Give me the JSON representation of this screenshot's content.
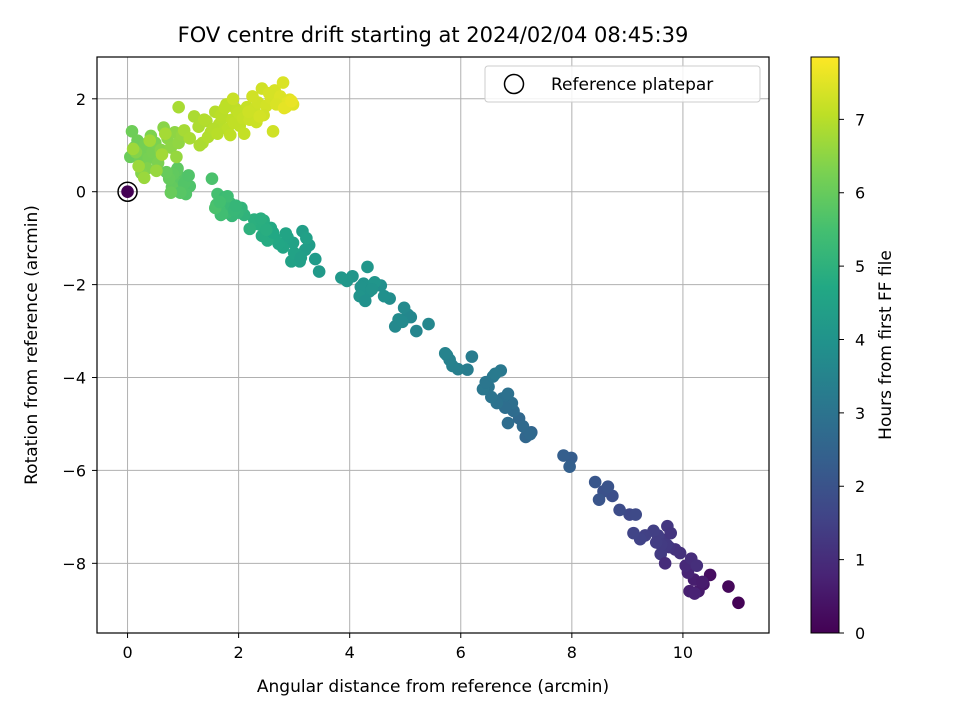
{
  "chart_data": {
    "type": "scatter",
    "title": "FOV centre drift starting at 2024/02/04 08:45:39",
    "xlabel": "Angular distance from reference (arcmin)",
    "ylabel": "Rotation from reference (arcmin)",
    "xlim": [
      -0.55,
      11.55
    ],
    "ylim": [
      -9.5,
      2.9
    ],
    "xticks": [
      0,
      2,
      4,
      6,
      8,
      10
    ],
    "yticks": [
      -8,
      -6,
      -4,
      -2,
      0,
      2
    ],
    "grid": true,
    "legend": {
      "position": "upper right",
      "entries": [
        "Reference platepar"
      ]
    },
    "reference_point": {
      "x": 0,
      "y": 0,
      "label": "Reference platepar"
    },
    "colorbar": {
      "label": "Hours from first FF file",
      "colormap": "viridis",
      "range": [
        0,
        7.85
      ],
      "ticks": [
        0,
        1,
        2,
        3,
        4,
        5,
        6,
        7
      ]
    },
    "series": [
      {
        "x": [
          11.0,
          10.82,
          10.49,
          10.37,
          10.28,
          10.2,
          10.09,
          10.05,
          10.15,
          10.25,
          10.35,
          10.12,
          10.21,
          9.95,
          9.86,
          9.75,
          9.72,
          9.65,
          9.6,
          9.55,
          9.68,
          9.47,
          9.71,
          9.61,
          9.78,
          9.52,
          9.32,
          9.23,
          9.11,
          9.04,
          9.15,
          8.86,
          8.73,
          8.57,
          8.65,
          8.49,
          8.42,
          7.99,
          7.85,
          7.96
        ],
        "y": [
          -8.85,
          -8.5,
          -8.25,
          -8.45,
          -8.6,
          -8.35,
          -8.2,
          -8.05,
          -7.9,
          -8.05,
          -8.4,
          -8.6,
          -8.65,
          -7.78,
          -7.7,
          -7.65,
          -7.2,
          -7.5,
          -7.8,
          -7.4,
          -8.0,
          -7.3,
          -7.6,
          -7.6,
          -7.35,
          -7.55,
          -7.4,
          -7.48,
          -7.35,
          -6.95,
          -6.95,
          -6.85,
          -6.55,
          -6.45,
          -6.35,
          -6.63,
          -6.25,
          -5.73,
          -5.68,
          -5.92
        ],
        "t": [
          0.05,
          0.15,
          0.3,
          0.45,
          0.55,
          0.65,
          0.8,
          0.9,
          1.0,
          1.05,
          0.6,
          0.7,
          0.75,
          1.1,
          1.15,
          1.2,
          1.25,
          1.3,
          1.35,
          1.4,
          1.0,
          1.45,
          1.3,
          1.35,
          1.2,
          1.4,
          1.5,
          1.55,
          1.6,
          1.7,
          1.75,
          1.8,
          1.9,
          1.95,
          2.0,
          2.05,
          2.1,
          2.3,
          2.35,
          2.4
        ]
      },
      {
        "x": [
          7.27,
          7.17,
          7.05,
          7.12,
          7.25,
          6.95,
          6.85,
          6.92,
          6.75,
          6.8,
          6.65,
          6.55,
          6.5,
          6.4,
          6.45,
          6.58,
          6.72,
          6.62,
          6.85,
          6.2,
          6.12,
          5.95,
          5.85,
          5.75,
          5.8,
          5.72,
          5.2,
          5.42,
          5.05,
          4.98,
          4.88,
          5.1,
          4.82,
          4.95,
          4.72,
          4.56,
          4.62,
          4.35,
          4.25,
          4.45,
          4.32,
          4.2,
          4.18,
          4.05,
          3.95,
          4.28,
          4.4,
          3.85
        ],
        "y": [
          -5.18,
          -5.28,
          -4.88,
          -5.05,
          -5.22,
          -4.72,
          -4.98,
          -4.55,
          -4.45,
          -4.65,
          -4.55,
          -4.42,
          -4.2,
          -4.25,
          -4.1,
          -3.98,
          -3.85,
          -3.92,
          -4.35,
          -3.55,
          -3.83,
          -3.82,
          -3.75,
          -3.52,
          -3.62,
          -3.48,
          -3.0,
          -2.85,
          -2.65,
          -2.5,
          -2.75,
          -2.7,
          -2.9,
          -2.8,
          -2.3,
          -2.02,
          -2.25,
          -2.15,
          -1.98,
          -1.95,
          -1.62,
          -2.05,
          -2.25,
          -1.82,
          -1.92,
          -2.35,
          -2.1,
          -1.85
        ],
        "t": [
          2.55,
          2.6,
          2.65,
          2.7,
          2.68,
          2.75,
          2.8,
          2.85,
          2.9,
          2.82,
          2.95,
          3.0,
          3.05,
          3.1,
          3.08,
          3.12,
          3.15,
          3.2,
          2.92,
          3.25,
          3.3,
          3.35,
          3.4,
          3.45,
          3.42,
          3.5,
          3.55,
          3.6,
          3.65,
          3.7,
          3.75,
          3.62,
          3.68,
          3.72,
          3.8,
          3.85,
          3.9,
          3.95,
          4.0,
          4.05,
          4.1,
          3.98,
          4.02,
          4.08,
          4.12,
          3.92,
          4.0,
          4.15
        ]
      },
      {
        "x": [
          3.45,
          3.38,
          3.27,
          3.2,
          3.1,
          3.04,
          2.98,
          3.15,
          3.22,
          2.95,
          2.88,
          2.8,
          3.0,
          3.12,
          2.85,
          2.72,
          2.65,
          2.58,
          2.52,
          2.45,
          2.42,
          2.35,
          2.28,
          2.62,
          2.5,
          2.2,
          2.1,
          2.05,
          2.4
        ],
        "y": [
          -1.72,
          -1.45,
          -1.15,
          -1.25,
          -1.5,
          -1.35,
          -1.1,
          -0.85,
          -1.0,
          -1.5,
          -0.98,
          -1.2,
          -1.32,
          -1.42,
          -0.9,
          -1.12,
          -1.0,
          -0.78,
          -1.05,
          -0.62,
          -0.95,
          -0.7,
          -0.6,
          -0.88,
          -0.82,
          -0.8,
          -0.5,
          -0.35,
          -0.58
        ],
        "t": [
          4.2,
          4.25,
          4.3,
          4.35,
          4.4,
          4.45,
          4.5,
          4.38,
          4.42,
          4.48,
          4.55,
          4.6,
          4.52,
          4.4,
          4.58,
          4.65,
          4.7,
          4.75,
          4.8,
          4.85,
          4.82,
          4.9,
          4.95,
          4.72,
          4.88,
          5.0,
          5.05,
          5.1,
          4.92
        ]
      },
      {
        "x": [
          1.98,
          1.88,
          1.82,
          1.78,
          1.72,
          1.68,
          1.65,
          1.62,
          1.6,
          1.75,
          1.85,
          1.7,
          1.58,
          1.92,
          1.8,
          1.66,
          1.52,
          1.95
        ],
        "y": [
          -0.45,
          -0.52,
          -0.32,
          -0.45,
          -0.2,
          -0.5,
          -0.38,
          -0.05,
          -0.28,
          -0.12,
          -0.25,
          -0.48,
          -0.35,
          -0.4,
          -0.1,
          -0.22,
          0.28,
          -0.3
        ],
        "t": [
          5.15,
          5.2,
          5.25,
          5.3,
          5.35,
          5.4,
          5.45,
          5.5,
          5.55,
          5.32,
          5.28,
          5.42,
          5.58,
          5.22,
          5.38,
          5.48,
          5.6,
          5.18
        ]
      },
      {
        "x": [
          1.12,
          1.05,
          0.98,
          0.92,
          0.85,
          0.88,
          0.8,
          1.02,
          0.95,
          1.1,
          0.9,
          0.82,
          0.75,
          0.7,
          0.78
        ],
        "y": [
          0.12,
          -0.05,
          0.3,
          0.02,
          0.22,
          0.45,
          0.1,
          0.18,
          -0.02,
          0.35,
          0.5,
          0.38,
          0.28,
          0.42,
          -0.02
        ],
        "t": [
          5.65,
          5.7,
          5.75,
          5.8,
          5.85,
          5.9,
          5.95,
          5.72,
          5.78,
          5.68,
          5.88,
          5.92,
          5.98,
          6.0,
          6.02
        ]
      },
      {
        "x": [
          0.05,
          0.12,
          0.08,
          0.18,
          0.22,
          0.28,
          0.32,
          0.38,
          0.45,
          0.5,
          0.55,
          0.42,
          0.35,
          0.25,
          0.15,
          0.6,
          0.65,
          0.72,
          0.78,
          0.85,
          0.92,
          0.98,
          0.88,
          0.52,
          0.3,
          0.2,
          0.1,
          0.4,
          0.62,
          0.68
        ],
        "y": [
          0.75,
          0.95,
          1.3,
          1.1,
          0.65,
          0.88,
          1.02,
          0.72,
          0.85,
          1.05,
          0.62,
          1.2,
          0.5,
          0.4,
          0.85,
          0.9,
          1.38,
          1.15,
          0.95,
          1.28,
          1.05,
          1.22,
          0.75,
          0.45,
          0.3,
          0.55,
          0.92,
          1.1,
          0.8,
          1.25
        ],
        "t": [
          6.05,
          6.08,
          6.1,
          6.12,
          6.15,
          6.18,
          6.2,
          6.22,
          6.25,
          6.28,
          6.3,
          6.32,
          6.35,
          6.38,
          6.4,
          6.42,
          6.45,
          6.48,
          6.5,
          6.52,
          6.55,
          6.58,
          6.6,
          6.62,
          6.65,
          6.68,
          6.7,
          6.72,
          6.75,
          6.78
        ]
      },
      {
        "x": [
          1.02,
          1.12,
          1.2,
          1.28,
          1.35,
          1.42,
          1.5,
          1.58,
          1.65,
          1.72,
          1.8,
          1.88,
          1.95,
          2.02,
          2.1,
          1.3,
          1.45,
          1.55,
          1.68,
          1.78,
          1.85,
          1.92,
          2.05,
          2.15,
          0.92,
          1.38,
          1.62,
          1.75,
          2.0,
          2.08,
          1.9
        ],
        "y": [
          1.32,
          1.15,
          1.62,
          1.4,
          1.05,
          1.52,
          1.28,
          1.72,
          1.45,
          1.6,
          1.35,
          1.55,
          1.78,
          1.42,
          1.25,
          1.0,
          1.18,
          1.35,
          1.65,
          1.88,
          1.22,
          1.48,
          1.65,
          1.82,
          1.82,
          1.55,
          1.25,
          1.8,
          1.7,
          1.58,
          2.0
        ],
        "t": [
          6.8,
          6.82,
          6.85,
          6.88,
          6.9,
          6.92,
          6.95,
          6.98,
          7.0,
          7.02,
          7.05,
          7.08,
          7.1,
          7.12,
          7.15,
          6.86,
          6.93,
          6.97,
          7.03,
          7.07,
          7.09,
          7.11,
          7.14,
          7.18,
          6.82,
          6.95,
          7.01,
          7.06,
          7.13,
          7.16,
          7.2
        ]
      },
      {
        "x": [
          2.2,
          2.28,
          2.35,
          2.42,
          2.5,
          2.58,
          2.65,
          2.72,
          2.8,
          2.85,
          2.92,
          2.98,
          2.62,
          2.45,
          2.32,
          2.55,
          2.75,
          2.88,
          2.18,
          2.38,
          2.68,
          2.82,
          2.95,
          2.25
        ],
        "y": [
          1.55,
          1.78,
          1.92,
          2.22,
          1.85,
          2.02,
          2.18,
          1.95,
          2.35,
          1.82,
          1.98,
          1.88,
          1.3,
          1.65,
          1.5,
          2.12,
          2.05,
          1.92,
          1.72,
          1.62,
          1.88,
          1.8,
          1.95,
          2.05
        ],
        "t": [
          7.22,
          7.25,
          7.28,
          7.3,
          7.32,
          7.35,
          7.38,
          7.4,
          7.42,
          7.45,
          7.48,
          7.5,
          7.28,
          7.3,
          7.24,
          7.36,
          7.44,
          7.52,
          7.26,
          7.33,
          7.41,
          7.55,
          7.6,
          7.3
        ]
      }
    ]
  }
}
